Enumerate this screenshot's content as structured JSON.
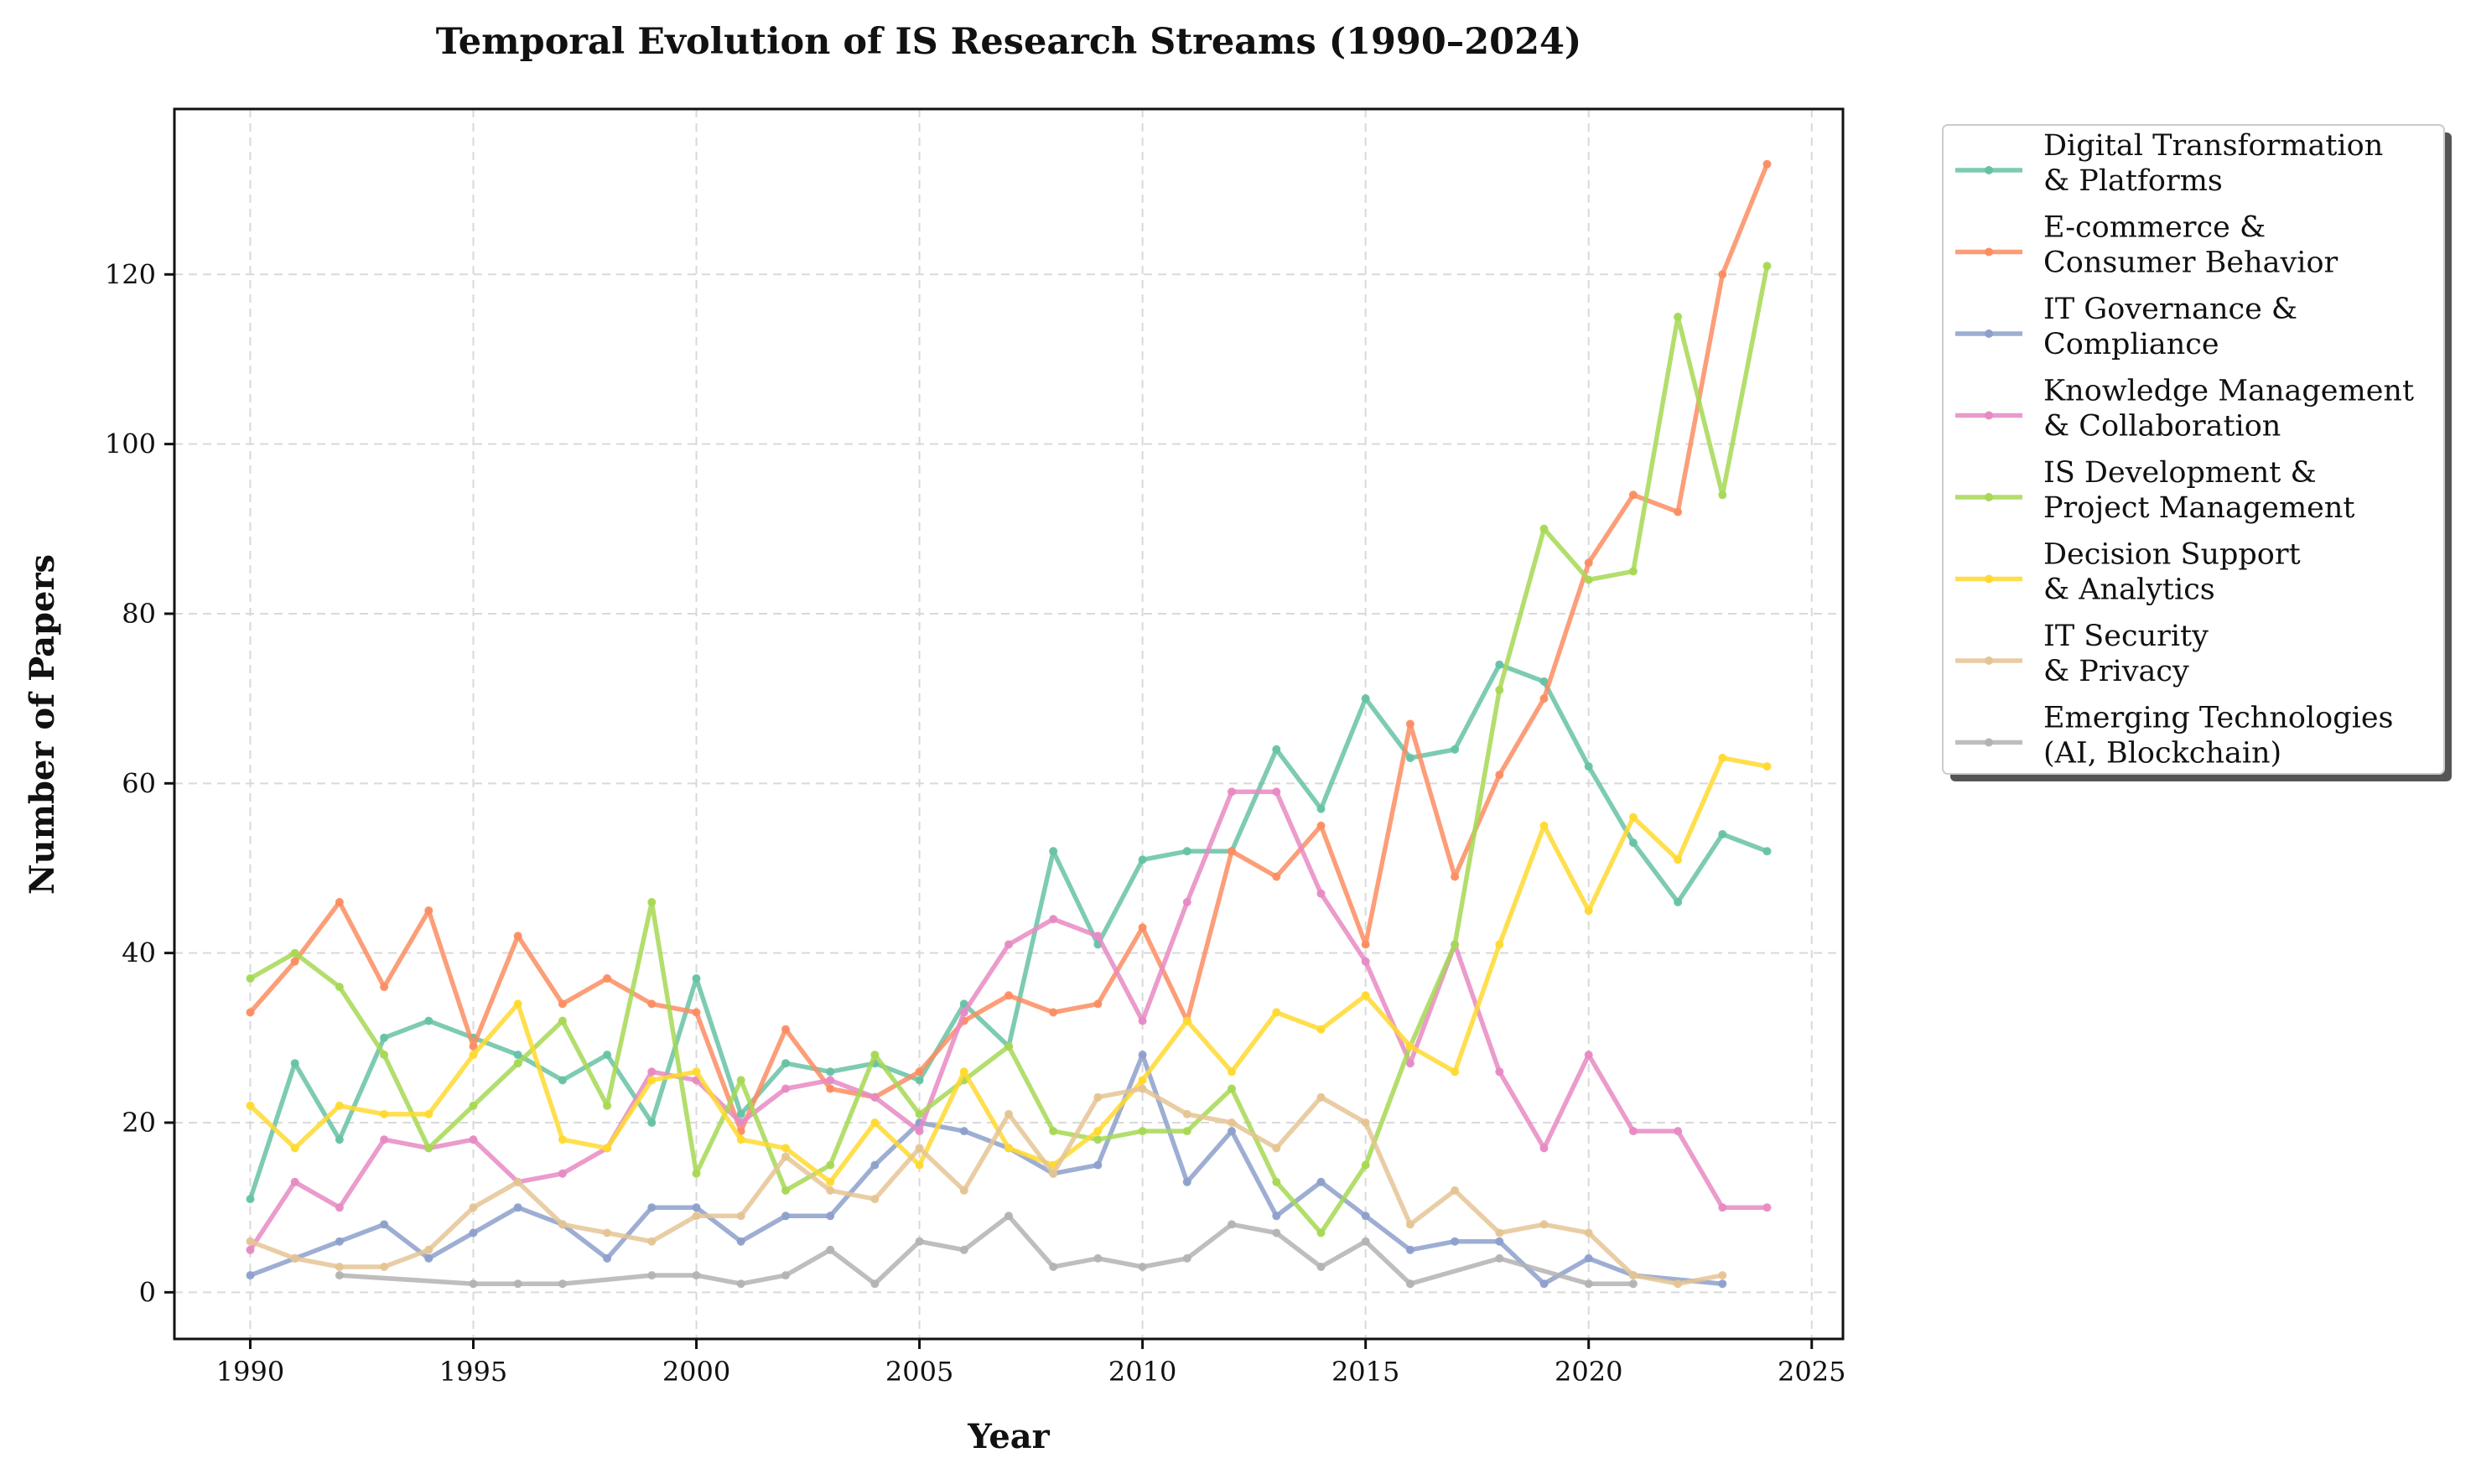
{
  "chart_data": {
    "type": "line",
    "title": "Temporal Evolution of IS Research Streams (1990–2024)",
    "xlabel": "Year",
    "ylabel": "Number of Papers",
    "xlim": [
      1988.3,
      2025.7
    ],
    "ylim": [
      -5.5,
      139.5
    ],
    "x_ticks": [
      1990,
      1995,
      2000,
      2005,
      2010,
      2015,
      2020,
      2025
    ],
    "y_ticks": [
      0,
      20,
      40,
      60,
      80,
      100,
      120
    ],
    "grid": true,
    "legend_position": "outside-right-top",
    "series": [
      {
        "name": "Digital Transformation\n& Platforms",
        "color": "#66c2a5",
        "points": [
          [
            1990,
            11
          ],
          [
            1991,
            27
          ],
          [
            1992,
            18
          ],
          [
            1993,
            30
          ],
          [
            1994,
            32
          ],
          [
            1995,
            30
          ],
          [
            1996,
            28
          ],
          [
            1997,
            25
          ],
          [
            1998,
            28
          ],
          [
            1999,
            20
          ],
          [
            2000,
            37
          ],
          [
            2001,
            21
          ],
          [
            2002,
            27
          ],
          [
            2003,
            26
          ],
          [
            2004,
            27
          ],
          [
            2005,
            25
          ],
          [
            2006,
            34
          ],
          [
            2007,
            29
          ],
          [
            2008,
            52
          ],
          [
            2009,
            41
          ],
          [
            2010,
            51
          ],
          [
            2011,
            52
          ],
          [
            2012,
            52
          ],
          [
            2013,
            64
          ],
          [
            2014,
            57
          ],
          [
            2015,
            70
          ],
          [
            2016,
            63
          ],
          [
            2017,
            64
          ],
          [
            2018,
            74
          ],
          [
            2019,
            72
          ],
          [
            2020,
            62
          ],
          [
            2021,
            53
          ],
          [
            2022,
            46
          ],
          [
            2023,
            54
          ],
          [
            2024,
            52
          ]
        ]
      },
      {
        "name": "E-commerce &\nConsumer Behavior",
        "color": "#fc8d62",
        "points": [
          [
            1990,
            33
          ],
          [
            1991,
            39
          ],
          [
            1992,
            46
          ],
          [
            1993,
            36
          ],
          [
            1994,
            45
          ],
          [
            1995,
            29
          ],
          [
            1996,
            42
          ],
          [
            1997,
            34
          ],
          [
            1998,
            37
          ],
          [
            1999,
            34
          ],
          [
            2000,
            33
          ],
          [
            2001,
            19
          ],
          [
            2002,
            31
          ],
          [
            2003,
            24
          ],
          [
            2004,
            23
          ],
          [
            2005,
            26
          ],
          [
            2006,
            32
          ],
          [
            2007,
            35
          ],
          [
            2008,
            33
          ],
          [
            2009,
            34
          ],
          [
            2010,
            43
          ],
          [
            2011,
            32
          ],
          [
            2012,
            52
          ],
          [
            2013,
            49
          ],
          [
            2014,
            55
          ],
          [
            2015,
            41
          ],
          [
            2016,
            67
          ],
          [
            2017,
            49
          ],
          [
            2018,
            61
          ],
          [
            2019,
            70
          ],
          [
            2020,
            86
          ],
          [
            2021,
            94
          ],
          [
            2022,
            92
          ],
          [
            2023,
            120
          ],
          [
            2024,
            133
          ]
        ]
      },
      {
        "name": "IT Governance &\nCompliance",
        "color": "#8da0cb",
        "points": [
          [
            1990,
            2
          ],
          [
            1991,
            4
          ],
          [
            1992,
            6
          ],
          [
            1993,
            8
          ],
          [
            1994,
            4
          ],
          [
            1995,
            7
          ],
          [
            1996,
            10
          ],
          [
            1997,
            8
          ],
          [
            1998,
            4
          ],
          [
            1999,
            10
          ],
          [
            2000,
            10
          ],
          [
            2001,
            6
          ],
          [
            2002,
            9
          ],
          [
            2003,
            9
          ],
          [
            2004,
            15
          ],
          [
            2005,
            20
          ],
          [
            2006,
            19
          ],
          [
            2007,
            17
          ],
          [
            2008,
            14
          ],
          [
            2009,
            15
          ],
          [
            2010,
            28
          ],
          [
            2011,
            13
          ],
          [
            2012,
            19
          ],
          [
            2013,
            9
          ],
          [
            2014,
            13
          ],
          [
            2015,
            9
          ],
          [
            2016,
            5
          ],
          [
            2017,
            6
          ],
          [
            2018,
            6
          ],
          [
            2019,
            1
          ],
          [
            2020,
            4
          ],
          [
            2021,
            2
          ],
          [
            2023,
            1
          ]
        ]
      },
      {
        "name": "Knowledge Management\n& Collaboration",
        "color": "#e78ac3",
        "points": [
          [
            1990,
            5
          ],
          [
            1991,
            13
          ],
          [
            1992,
            10
          ],
          [
            1993,
            18
          ],
          [
            1994,
            17
          ],
          [
            1995,
            18
          ],
          [
            1996,
            13
          ],
          [
            1997,
            14
          ],
          [
            1998,
            17
          ],
          [
            1999,
            26
          ],
          [
            2000,
            25
          ],
          [
            2001,
            20
          ],
          [
            2002,
            24
          ],
          [
            2003,
            25
          ],
          [
            2004,
            23
          ],
          [
            2005,
            19
          ],
          [
            2006,
            33
          ],
          [
            2007,
            41
          ],
          [
            2008,
            44
          ],
          [
            2009,
            42
          ],
          [
            2010,
            32
          ],
          [
            2011,
            46
          ],
          [
            2012,
            59
          ],
          [
            2013,
            59
          ],
          [
            2014,
            47
          ],
          [
            2015,
            39
          ],
          [
            2016,
            27
          ],
          [
            2017,
            41
          ],
          [
            2018,
            26
          ],
          [
            2019,
            17
          ],
          [
            2020,
            28
          ],
          [
            2021,
            19
          ],
          [
            2022,
            19
          ],
          [
            2023,
            10
          ],
          [
            2024,
            10
          ]
        ]
      },
      {
        "name": "IS Development &\nProject Management",
        "color": "#a6d854",
        "points": [
          [
            1990,
            37
          ],
          [
            1991,
            40
          ],
          [
            1992,
            36
          ],
          [
            1993,
            28
          ],
          [
            1994,
            17
          ],
          [
            1995,
            22
          ],
          [
            1996,
            27
          ],
          [
            1997,
            32
          ],
          [
            1998,
            22
          ],
          [
            1999,
            46
          ],
          [
            2000,
            14
          ],
          [
            2001,
            25
          ],
          [
            2002,
            12
          ],
          [
            2003,
            15
          ],
          [
            2004,
            28
          ],
          [
            2005,
            21
          ],
          [
            2006,
            25
          ],
          [
            2007,
            29
          ],
          [
            2008,
            19
          ],
          [
            2009,
            18
          ],
          [
            2010,
            19
          ],
          [
            2011,
            19
          ],
          [
            2012,
            24
          ],
          [
            2013,
            13
          ],
          [
            2014,
            7
          ],
          [
            2015,
            15
          ],
          [
            2016,
            29
          ],
          [
            2017,
            41
          ],
          [
            2018,
            71
          ],
          [
            2019,
            90
          ],
          [
            2020,
            84
          ],
          [
            2021,
            85
          ],
          [
            2022,
            115
          ],
          [
            2023,
            94
          ],
          [
            2024,
            121
          ]
        ]
      },
      {
        "name": "Decision Support\n& Analytics",
        "color": "#ffd92f",
        "points": [
          [
            1990,
            22
          ],
          [
            1991,
            17
          ],
          [
            1992,
            22
          ],
          [
            1993,
            21
          ],
          [
            1994,
            21
          ],
          [
            1995,
            28
          ],
          [
            1996,
            34
          ],
          [
            1997,
            18
          ],
          [
            1998,
            17
          ],
          [
            1999,
            25
          ],
          [
            2000,
            26
          ],
          [
            2001,
            18
          ],
          [
            2002,
            17
          ],
          [
            2003,
            13
          ],
          [
            2004,
            20
          ],
          [
            2005,
            15
          ],
          [
            2006,
            26
          ],
          [
            2007,
            17
          ],
          [
            2008,
            15
          ],
          [
            2009,
            19
          ],
          [
            2010,
            25
          ],
          [
            2011,
            32
          ],
          [
            2012,
            26
          ],
          [
            2013,
            33
          ],
          [
            2014,
            31
          ],
          [
            2015,
            35
          ],
          [
            2016,
            29
          ],
          [
            2017,
            26
          ],
          [
            2018,
            41
          ],
          [
            2019,
            55
          ],
          [
            2020,
            45
          ],
          [
            2021,
            56
          ],
          [
            2022,
            51
          ],
          [
            2023,
            63
          ],
          [
            2024,
            62
          ]
        ]
      },
      {
        "name": "IT Security\n& Privacy",
        "color": "#e5c494",
        "points": [
          [
            1990,
            6
          ],
          [
            1991,
            4
          ],
          [
            1992,
            3
          ],
          [
            1993,
            3
          ],
          [
            1994,
            5
          ],
          [
            1995,
            10
          ],
          [
            1996,
            13
          ],
          [
            1997,
            8
          ],
          [
            1998,
            7
          ],
          [
            1999,
            6
          ],
          [
            2000,
            9
          ],
          [
            2001,
            9
          ],
          [
            2002,
            16
          ],
          [
            2003,
            12
          ],
          [
            2004,
            11
          ],
          [
            2005,
            17
          ],
          [
            2006,
            12
          ],
          [
            2007,
            21
          ],
          [
            2008,
            14
          ],
          [
            2009,
            23
          ],
          [
            2010,
            24
          ],
          [
            2011,
            21
          ],
          [
            2012,
            20
          ],
          [
            2013,
            17
          ],
          [
            2014,
            23
          ],
          [
            2015,
            20
          ],
          [
            2016,
            8
          ],
          [
            2017,
            12
          ],
          [
            2018,
            7
          ],
          [
            2019,
            8
          ],
          [
            2020,
            7
          ],
          [
            2021,
            2
          ],
          [
            2022,
            1
          ],
          [
            2023,
            2
          ]
        ]
      },
      {
        "name": "Emerging Technologies\n(AI, Blockchain)",
        "color": "#b3b3b3",
        "points": [
          [
            1992,
            2
          ],
          [
            1995,
            1
          ],
          [
            1996,
            1
          ],
          [
            1997,
            1
          ],
          [
            1999,
            2
          ],
          [
            2000,
            2
          ],
          [
            2001,
            1
          ],
          [
            2002,
            2
          ],
          [
            2003,
            5
          ],
          [
            2004,
            1
          ],
          [
            2005,
            6
          ],
          [
            2006,
            5
          ],
          [
            2007,
            9
          ],
          [
            2008,
            3
          ],
          [
            2009,
            4
          ],
          [
            2010,
            3
          ],
          [
            2011,
            4
          ],
          [
            2012,
            8
          ],
          [
            2013,
            7
          ],
          [
            2014,
            3
          ],
          [
            2015,
            6
          ],
          [
            2016,
            1
          ],
          [
            2018,
            4
          ],
          [
            2020,
            1
          ],
          [
            2021,
            1
          ]
        ]
      }
    ]
  }
}
